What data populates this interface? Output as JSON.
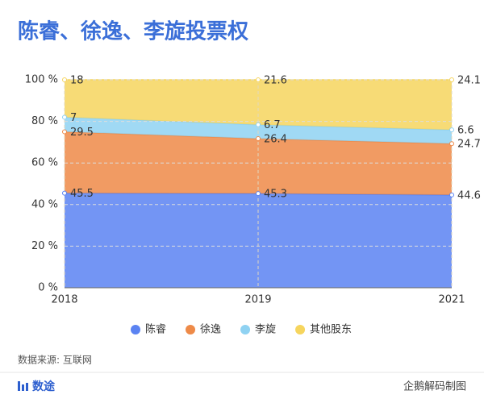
{
  "chart_data": {
    "type": "stacked-area",
    "title": "陈睿、徐逸、李旋投票权",
    "categories": [
      "2018",
      "2019",
      "2021"
    ],
    "series": [
      {
        "name": "陈睿",
        "color": "#5b83f2",
        "values": [
          45.5,
          45.3,
          44.6
        ]
      },
      {
        "name": "徐逸",
        "color": "#ee8a48",
        "values": [
          29.5,
          26.4,
          24.7
        ]
      },
      {
        "name": "李旋",
        "color": "#8fd2f2",
        "values": [
          7,
          6.7,
          6.6
        ]
      },
      {
        "name": "其他股东",
        "color": "#f6d55e",
        "values": [
          18,
          21.6,
          24.1
        ]
      }
    ],
    "ylim": [
      0,
      100
    ],
    "yticks": [
      {
        "value": 0,
        "label": "0 %"
      },
      {
        "value": 20,
        "label": "20 %"
      },
      {
        "value": 40,
        "label": "40 %"
      },
      {
        "value": 60,
        "label": "60 %"
      },
      {
        "value": 80,
        "label": "80 %"
      },
      {
        "value": 100,
        "label": "100 %"
      }
    ],
    "grid": true,
    "source": "数据来源: 互联网",
    "brand": "数途",
    "credit": "企鹅解码制图"
  }
}
